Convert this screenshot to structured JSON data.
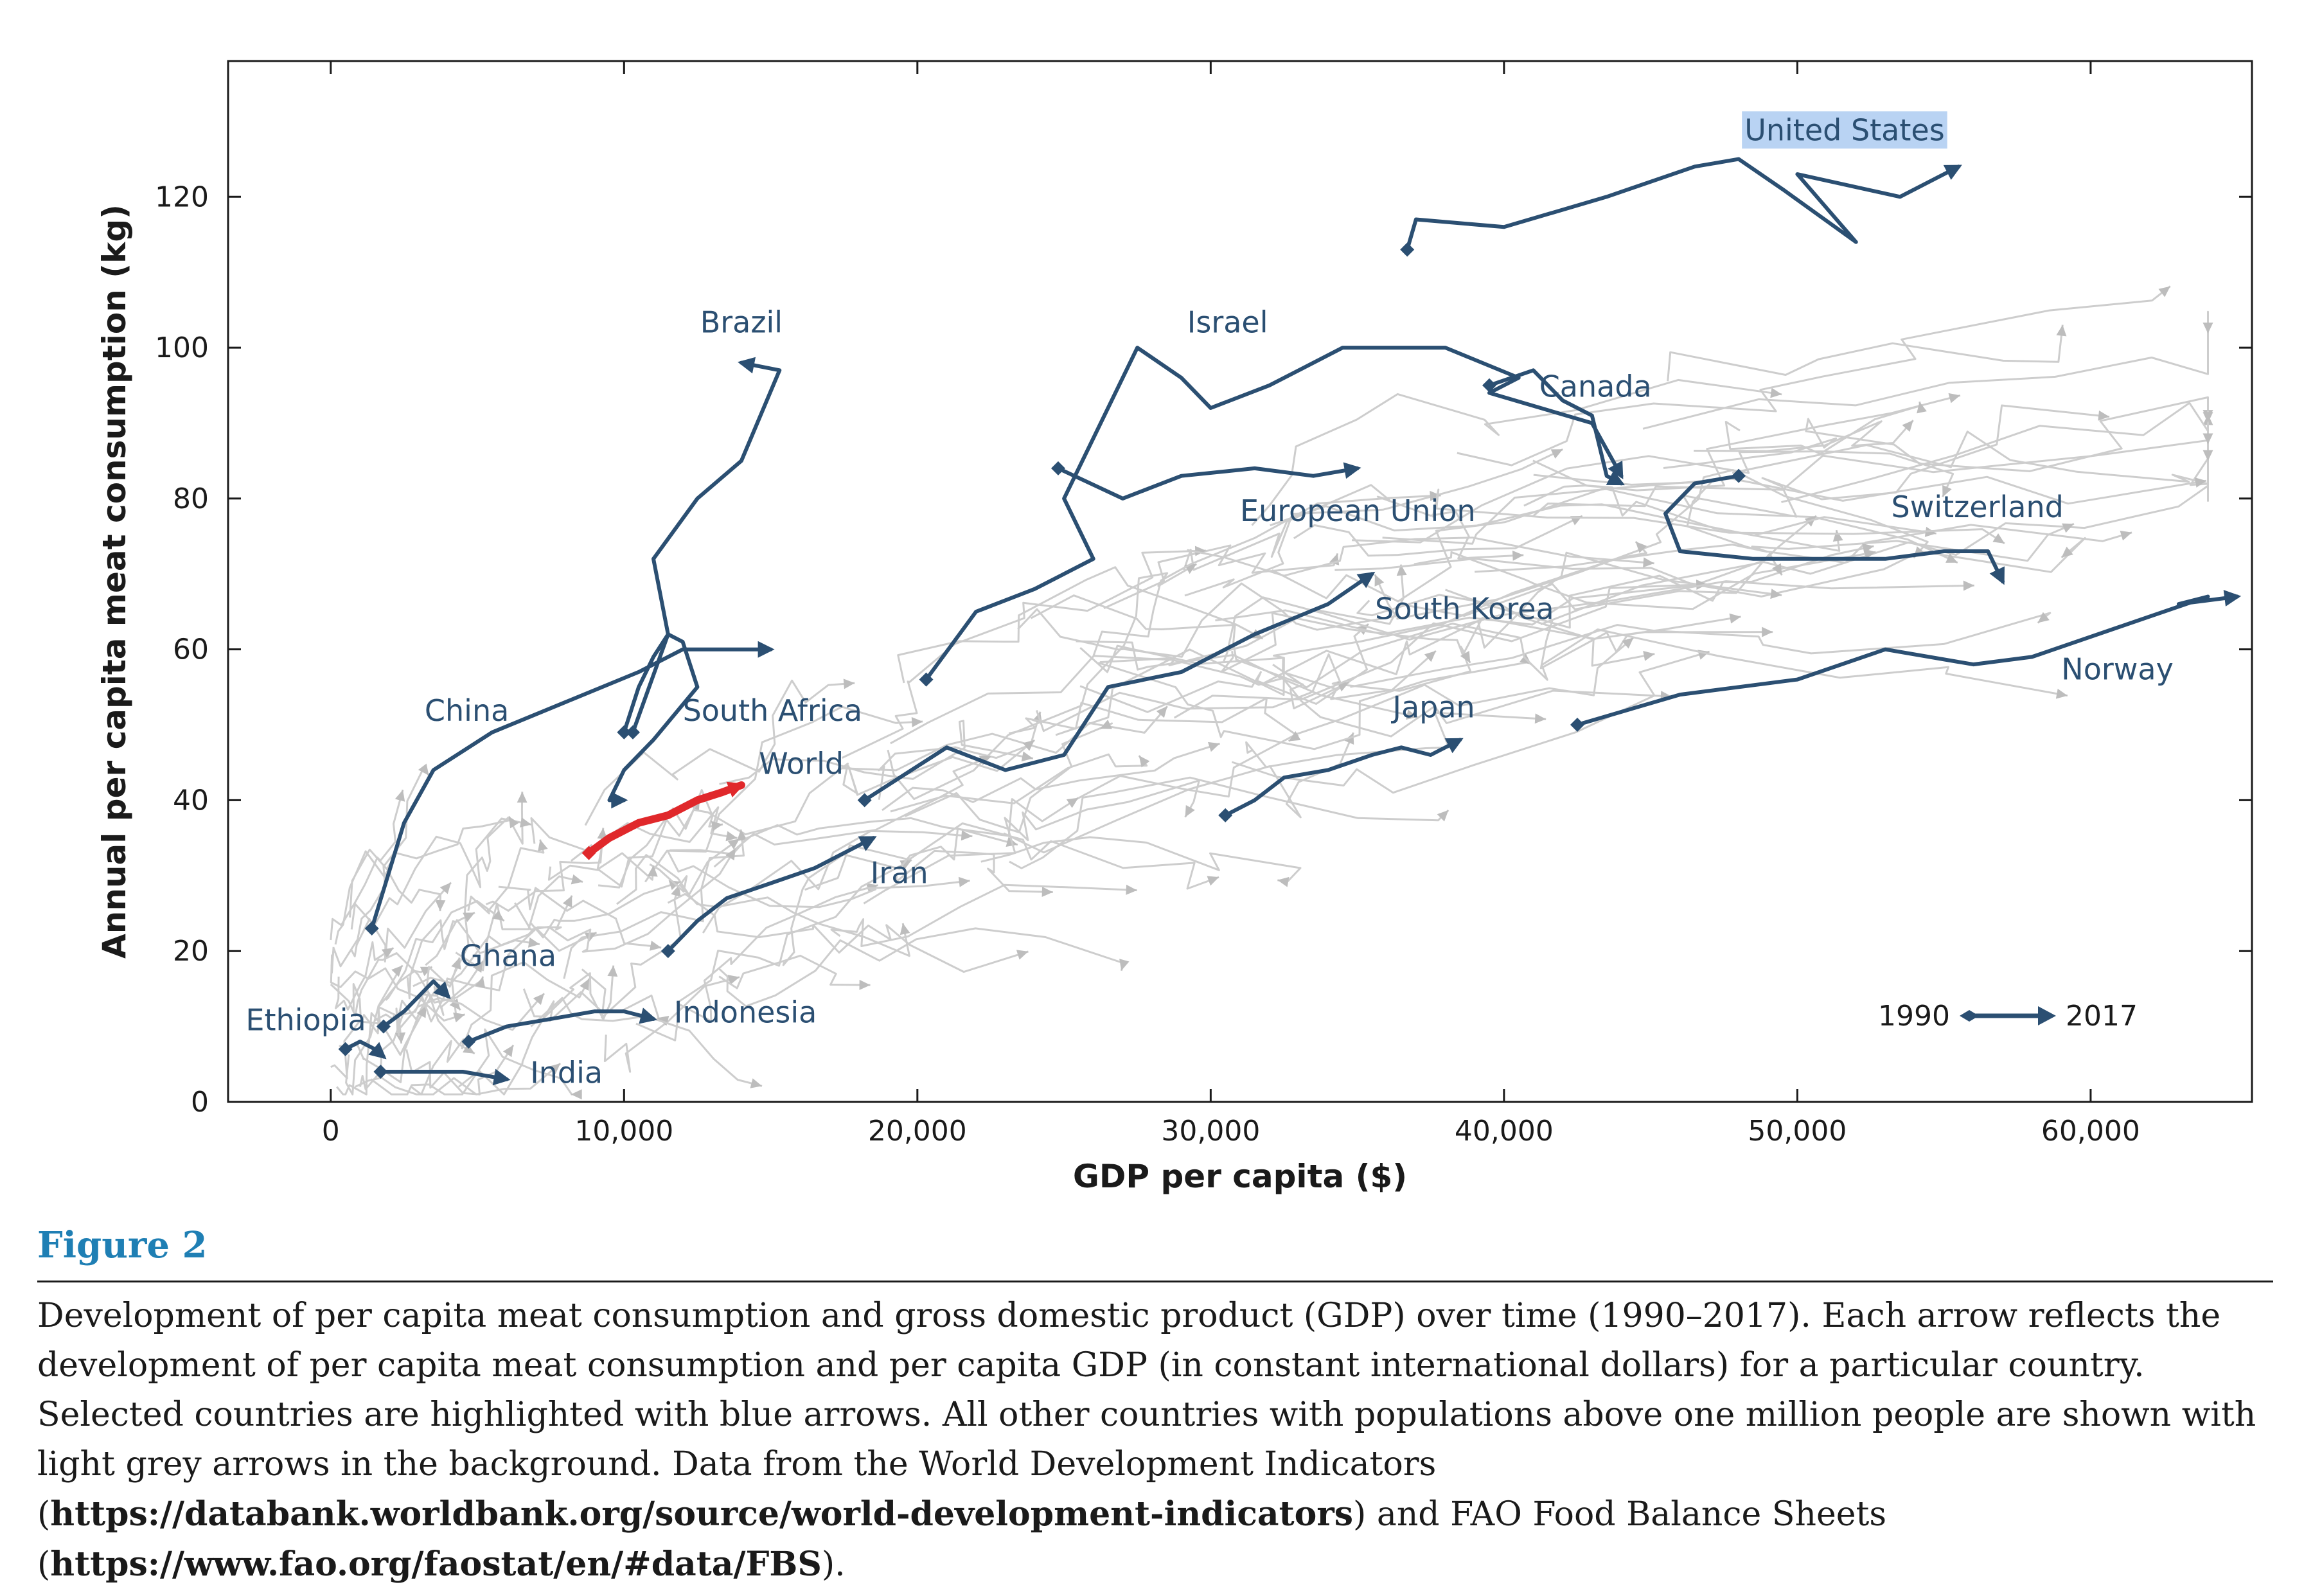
{
  "chart_data": {
    "type": "line",
    "xlabel": "GDP per capita ($)",
    "ylabel": "Annual per capita meat consumption (kg)",
    "xlim": [
      -3500,
      65500
    ],
    "ylim": [
      0,
      138
    ],
    "x_ticks": [
      0,
      10000,
      20000,
      30000,
      40000,
      50000,
      60000
    ],
    "x_tick_labels": [
      "0",
      "10,000",
      "20,000",
      "30,000",
      "40,000",
      "50,000",
      "60,000"
    ],
    "y_ticks": [
      0,
      20,
      40,
      60,
      80,
      100,
      120
    ],
    "y_tick_labels": [
      "0",
      "20",
      "40",
      "60",
      "80",
      "100",
      "120"
    ],
    "legend": {
      "start": "1990",
      "end": "2017",
      "placement": "bottom-right"
    },
    "colors": {
      "highlight": "#2b4f72",
      "world": "#e0282b",
      "background": "#c8c8c8"
    },
    "series": [
      {
        "name": "United States",
        "x": [
          36700,
          37000,
          40000,
          43500,
          46500,
          48000,
          49500,
          52000,
          50000,
          53500,
          55500
        ],
        "y": [
          113,
          117,
          116,
          120,
          124,
          125,
          121,
          114,
          123,
          120,
          124
        ]
      },
      {
        "name": "Brazil",
        "x": [
          10300,
          11500,
          11000,
          12500,
          14000,
          15300,
          14000
        ],
        "y": [
          49,
          62,
          72,
          80,
          85,
          97,
          98
        ]
      },
      {
        "name": "Israel",
        "x": [
          20300,
          22000,
          24000,
          26000,
          25000,
          27500,
          29000,
          30000,
          32000,
          34500,
          38000,
          40500,
          39500,
          43000,
          44000
        ],
        "y": [
          56,
          65,
          68,
          72,
          80,
          100,
          96,
          92,
          95,
          100,
          100,
          96,
          94,
          90,
          83
        ]
      },
      {
        "name": "Canada",
        "x": [
          39500,
          41000,
          42000,
          43000,
          43500,
          44000
        ],
        "y": [
          95,
          97,
          93,
          91,
          83,
          82
        ]
      },
      {
        "name": "European Union",
        "x": [
          24800,
          27000,
          29000,
          31500,
          33500,
          35000
        ],
        "y": [
          84,
          80,
          83,
          84,
          83,
          84
        ]
      },
      {
        "name": "Switzerland",
        "x": [
          48000,
          46500,
          45500,
          46000,
          48500,
          51000,
          53000,
          55000,
          56500,
          57000
        ],
        "y": [
          83,
          82,
          78,
          73,
          72,
          72,
          72,
          73,
          73,
          69
        ]
      },
      {
        "name": "South Korea",
        "x": [
          18200,
          21000,
          23000,
          25000,
          26500,
          29000,
          31500,
          34000,
          35500
        ],
        "y": [
          40,
          47,
          44,
          46,
          55,
          57,
          62,
          66,
          70
        ]
      },
      {
        "name": "Norway",
        "x": [
          42500,
          46000,
          50000,
          53000,
          56000,
          58000,
          61000,
          64000,
          63000,
          65000
        ],
        "y": [
          50,
          54,
          56,
          60,
          58,
          59,
          63,
          67,
          66,
          67
        ]
      },
      {
        "name": "Japan",
        "x": [
          30500,
          31500,
          32500,
          34000,
          35500,
          36500,
          37500,
          38500
        ],
        "y": [
          38,
          40,
          43,
          44,
          46,
          47,
          46,
          48
        ]
      },
      {
        "name": "China",
        "x": [
          1400,
          2500,
          3500,
          5500,
          8000,
          10500,
          12000,
          13500,
          15000
        ],
        "y": [
          23,
          37,
          44,
          49,
          53,
          57,
          60,
          60,
          60
        ]
      },
      {
        "name": "South Africa",
        "x": [
          10000,
          10500,
          11000,
          11500,
          12000,
          12500,
          11000,
          10000,
          9500,
          10000
        ],
        "y": [
          49,
          55,
          59,
          62,
          61,
          55,
          48,
          44,
          40,
          40
        ]
      },
      {
        "name": "World",
        "x": [
          8800,
          9500,
          10500,
          11500,
          12500,
          13300,
          14000
        ],
        "y": [
          33,
          35,
          37,
          38,
          40,
          41,
          42
        ]
      },
      {
        "name": "Iran",
        "x": [
          11500,
          12500,
          13500,
          15000,
          16500,
          17500,
          18500
        ],
        "y": [
          20,
          24,
          27,
          29,
          31,
          33,
          35
        ]
      },
      {
        "name": "Ghana",
        "x": [
          1800,
          2500,
          3000,
          3500,
          4000
        ],
        "y": [
          10,
          12,
          14,
          16,
          14
        ]
      },
      {
        "name": "Ethiopia",
        "x": [
          500,
          1000,
          1500,
          1800
        ],
        "y": [
          7,
          8,
          7,
          6
        ]
      },
      {
        "name": "Indonesia",
        "x": [
          4700,
          6000,
          7500,
          9000,
          10000,
          11000
        ],
        "y": [
          8,
          10,
          11,
          12,
          12,
          11
        ]
      },
      {
        "name": "India",
        "x": [
          1700,
          3000,
          4500,
          6000
        ],
        "y": [
          4,
          4,
          4,
          3
        ]
      }
    ]
  },
  "figure": {
    "label": "Figure 2",
    "caption_main": "Development of per capita meat consumption and gross domestic product (GDP) over time (1990–2017). Each arrow reflects the development of per capita meat consumption and per capita GDP (in constant international dollars) for a particular country. Selected countries are highlighted with blue arrows. All other countries with populations above one million people are shown with light grey arrows in the background. Data from the World Development Indicators (",
    "caption_link1": "https://databank.worldbank.org/source/world-development-indicators",
    "caption_mid": ") and FAO Food Balance Sheets (",
    "caption_link2": "https://www.fao.org/faostat/en/#data/FBS",
    "caption_end": ")."
  }
}
